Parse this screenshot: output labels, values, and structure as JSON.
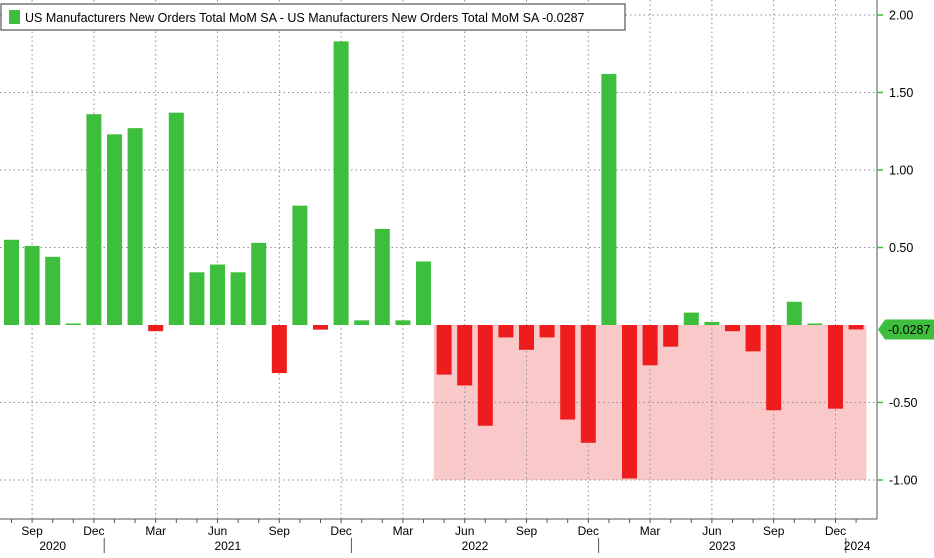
{
  "chart_data": {
    "type": "bar",
    "legend": {
      "label": "US Manufacturers New Orders Total MoM SA - US Manufacturers New Orders Total MoM SA -0.0287",
      "position": "top-left"
    },
    "last_value_label": "-0.0287",
    "ylim": [
      -1.25,
      2.1
    ],
    "y_ticks": [
      {
        "value": 2.0,
        "label": "2.00"
      },
      {
        "value": 1.5,
        "label": "1.50"
      },
      {
        "value": 1.0,
        "label": "1.00"
      },
      {
        "value": 0.5,
        "label": "0.50"
      },
      {
        "value": -0.5,
        "label": "-0.50"
      },
      {
        "value": -1.0,
        "label": "-1.00"
      }
    ],
    "x_month_labels": [
      {
        "index": 1,
        "label": "Sep"
      },
      {
        "index": 4,
        "label": "Dec"
      },
      {
        "index": 7,
        "label": "Mar"
      },
      {
        "index": 10,
        "label": "Jun"
      },
      {
        "index": 13,
        "label": "Sep"
      },
      {
        "index": 16,
        "label": "Dec"
      },
      {
        "index": 19,
        "label": "Mar"
      },
      {
        "index": 22,
        "label": "Jun"
      },
      {
        "index": 25,
        "label": "Sep"
      },
      {
        "index": 28,
        "label": "Dec"
      },
      {
        "index": 31,
        "label": "Mar"
      },
      {
        "index": 34,
        "label": "Jun"
      },
      {
        "index": 37,
        "label": "Sep"
      },
      {
        "index": 40,
        "label": "Dec"
      }
    ],
    "x_year_labels": [
      {
        "label": "2020",
        "start": -0.5,
        "end": 4.5
      },
      {
        "label": "2021",
        "start": 4.5,
        "end": 16.5
      },
      {
        "label": "2022",
        "start": 16.5,
        "end": 28.5
      },
      {
        "label": "2023",
        "start": 28.5,
        "end": 40.5
      },
      {
        "label": "2024",
        "start": 40.5,
        "end": 41.6
      }
    ],
    "categories": [
      "2020-08",
      "2020-09",
      "2020-10",
      "2020-11",
      "2020-12",
      "2021-01",
      "2021-02",
      "2021-03",
      "2021-04",
      "2021-05",
      "2021-06",
      "2021-07",
      "2021-08",
      "2021-09",
      "2021-10",
      "2021-11",
      "2021-12",
      "2022-01",
      "2022-02",
      "2022-03",
      "2022-04",
      "2022-05",
      "2022-06",
      "2022-07",
      "2022-08",
      "2022-09",
      "2022-10",
      "2022-11",
      "2022-12",
      "2023-01",
      "2023-02",
      "2023-03",
      "2023-04",
      "2023-05",
      "2023-06",
      "2023-07",
      "2023-08",
      "2023-09",
      "2023-10",
      "2023-11",
      "2023-12",
      "2024-01"
    ],
    "values": [
      0.55,
      0.51,
      0.44,
      0.0,
      1.36,
      1.23,
      1.27,
      -0.04,
      1.37,
      0.34,
      0.39,
      0.34,
      0.53,
      -0.31,
      0.77,
      -0.03,
      1.83,
      0.03,
      0.62,
      0.03,
      0.41,
      -0.32,
      -0.39,
      -0.65,
      -0.08,
      -0.16,
      -0.08,
      -0.61,
      -0.76,
      1.62,
      -0.99,
      -0.26,
      -0.14,
      0.08,
      0.02,
      -0.04,
      -0.17,
      -0.55,
      0.15,
      0.01,
      -0.54,
      -0.0287
    ],
    "highlight_region": {
      "start_index": 20.5,
      "end_index": 41.5,
      "y_from": -1.0,
      "y_to": 0.0,
      "color": "#f9c8c8"
    },
    "colors": {
      "positive": "#3dbe3d",
      "negative": "#ee1c1c",
      "axis_green": "#3dbe3d",
      "grid": "#8f8f8f"
    },
    "grid": true
  }
}
